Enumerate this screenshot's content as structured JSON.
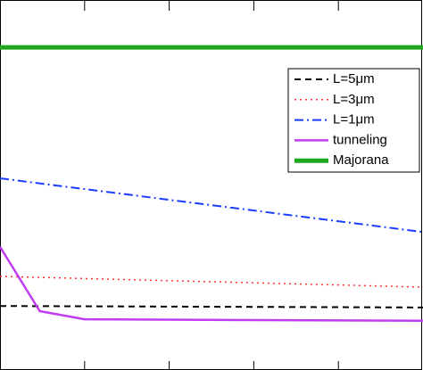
{
  "chart_data": {
    "type": "line",
    "xlim": [
      0,
      5
    ],
    "ylim": [
      0,
      10
    ],
    "xticks": [
      1,
      2,
      3,
      4
    ],
    "legend": "upper right",
    "series": [
      {
        "name": "L=5μm",
        "color": "#000000",
        "linestyle": "dashed",
        "linewidth": 2,
        "x": [
          0,
          5
        ],
        "values": [
          1.73,
          1.69
        ]
      },
      {
        "name": "L=3μm",
        "color": "#ff3030",
        "linestyle": "dotted",
        "linewidth": 1.5,
        "x": [
          0,
          5
        ],
        "values": [
          2.53,
          2.24
        ]
      },
      {
        "name": "L=1μm",
        "color": "#1a3cff",
        "linestyle": "dashdot",
        "linewidth": 2,
        "x": [
          0,
          5
        ],
        "values": [
          5.18,
          3.73
        ]
      },
      {
        "name": "tunneling",
        "color": "#c03cf0",
        "linestyle": "solid",
        "linewidth": 2.5,
        "x": [
          0,
          0.47,
          1,
          5
        ],
        "values": [
          3.33,
          1.59,
          1.37,
          1.33
        ]
      },
      {
        "name": "Majorana",
        "color": "#1ea81e",
        "linestyle": "solid",
        "linewidth": 5,
        "x": [
          0,
          5
        ],
        "values": [
          8.72,
          8.72
        ]
      }
    ]
  }
}
